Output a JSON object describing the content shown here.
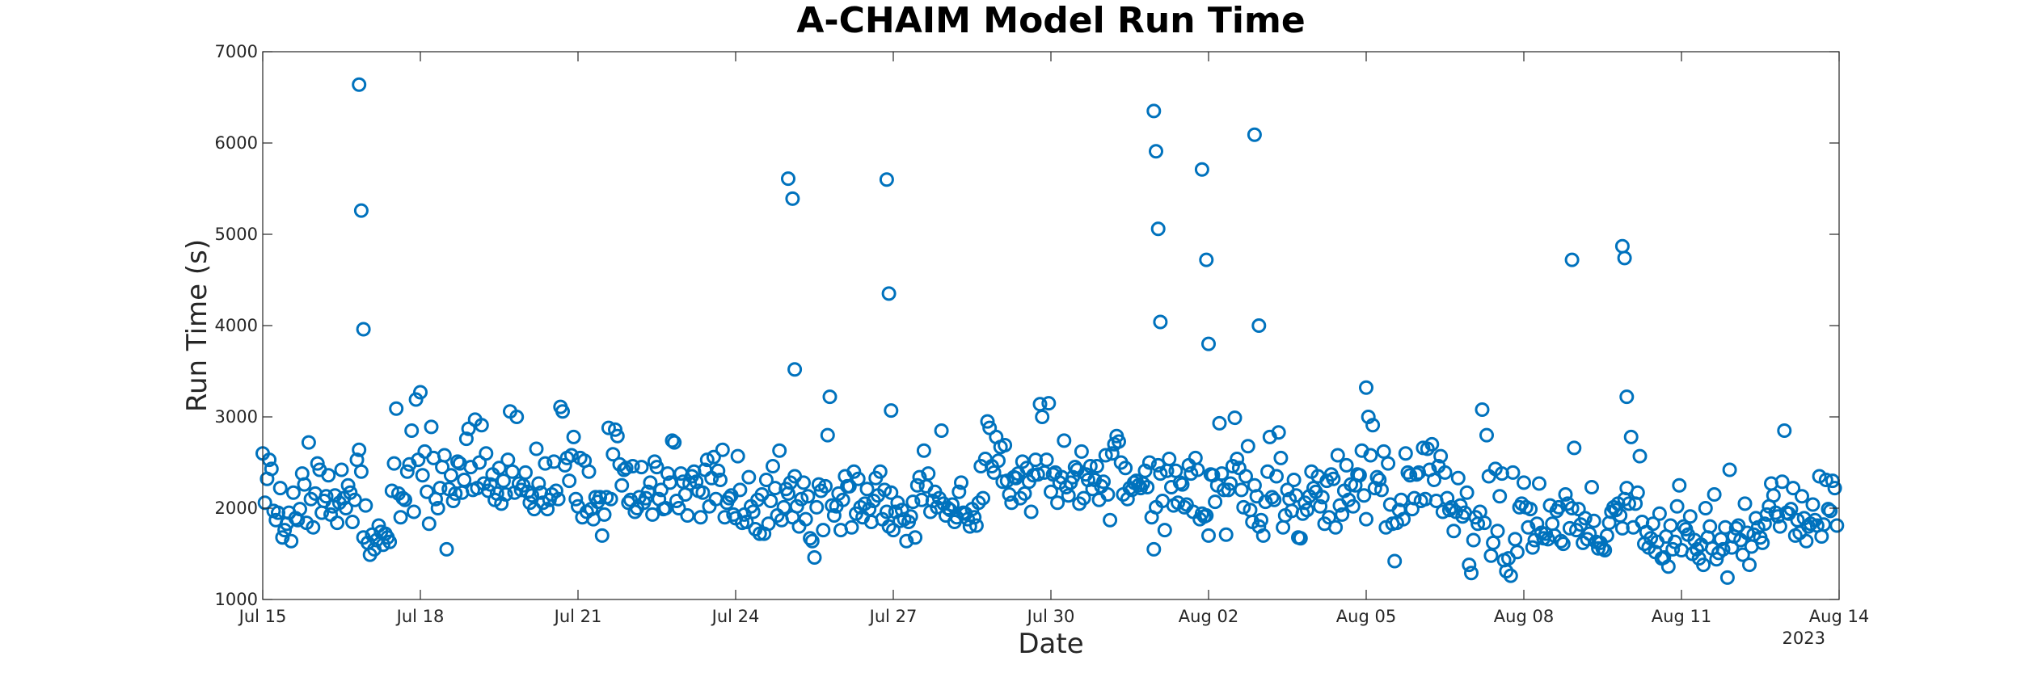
{
  "chart_data": {
    "type": "scatter",
    "title": "A-CHAIM Model Run Time",
    "xlabel": "Date",
    "ylabel": "Run Time (s)",
    "year_label": "2023",
    "marker_color": "#0072BD",
    "grid": false,
    "xlim": [
      "2023-07-15",
      "2023-08-14"
    ],
    "ylim": [
      1000,
      7000
    ],
    "x_ticks": [
      {
        "date": "2023-07-15",
        "label": "Jul 15"
      },
      {
        "date": "2023-07-18",
        "label": "Jul 18"
      },
      {
        "date": "2023-07-21",
        "label": "Jul 21"
      },
      {
        "date": "2023-07-24",
        "label": "Jul 24"
      },
      {
        "date": "2023-07-27",
        "label": "Jul 27"
      },
      {
        "date": "2023-07-30",
        "label": "Jul 30"
      },
      {
        "date": "2023-08-02",
        "label": "Aug 02"
      },
      {
        "date": "2023-08-05",
        "label": "Aug 05"
      },
      {
        "date": "2023-08-08",
        "label": "Aug 08"
      },
      {
        "date": "2023-08-11",
        "label": "Aug 11"
      },
      {
        "date": "2023-08-14",
        "label": "Aug 14"
      }
    ],
    "y_ticks": [
      1000,
      2000,
      3000,
      4000,
      5000,
      6000,
      7000
    ],
    "outliers": [
      {
        "x": "2023-07-16 20:00",
        "y": 6640
      },
      {
        "x": "2023-07-16 21:00",
        "y": 5260
      },
      {
        "x": "2023-07-16 22:00",
        "y": 3960
      },
      {
        "x": "2023-07-25 00:00",
        "y": 5610
      },
      {
        "x": "2023-07-25 02:00",
        "y": 5390
      },
      {
        "x": "2023-07-25 03:00",
        "y": 3520
      },
      {
        "x": "2023-07-26 21:00",
        "y": 5600
      },
      {
        "x": "2023-07-26 22:00",
        "y": 4350
      },
      {
        "x": "2023-07-26 23:00",
        "y": 3070
      },
      {
        "x": "2023-07-31 23:00",
        "y": 6350
      },
      {
        "x": "2023-08-01 00:00",
        "y": 5910
      },
      {
        "x": "2023-08-01 01:00",
        "y": 5060
      },
      {
        "x": "2023-08-01 02:00",
        "y": 4040
      },
      {
        "x": "2023-08-01 21:00",
        "y": 5710
      },
      {
        "x": "2023-08-01 23:00",
        "y": 4720
      },
      {
        "x": "2023-08-02 00:00",
        "y": 3800
      },
      {
        "x": "2023-08-02 21:00",
        "y": 6090
      },
      {
        "x": "2023-08-02 23:00",
        "y": 4000
      },
      {
        "x": "2023-08-05 00:00",
        "y": 3320
      },
      {
        "x": "2023-08-08 22:00",
        "y": 4720
      },
      {
        "x": "2023-08-09 21:00",
        "y": 4870
      },
      {
        "x": "2023-08-09 22:00",
        "y": 4740
      },
      {
        "x": "2023-08-09 23:00",
        "y": 3220
      }
    ],
    "series": [
      {
        "x_start": "2023-07-15 00:00",
        "x_step_hours": 1,
        "y": [
          2600,
          2060,
          2320,
          2530,
          2430,
          1970,
          1870,
          1950,
          2220,
          1680,
          1760,
          1830,
          1950,
          1640,
          2170,
          1890,
          1870,
          1990,
          2380,
          2260,
          1840,
          2720,
          2100,
          1790,
          2160,
          2490,
          2420,
          1950,
          2080,
          2130,
          2360,
          1930,
          2020,
          2140,
          1840,
          2060,
          2420,
          2110,
          2000,
          2250,
          2170,
          1850,
          2090,
          2530,
          2640,
          2400,
          1680,
          2030,
          1620,
          1490,
          1710,
          1550,
          1650,
          1810,
          1740,
          1600,
          1720,
          1680,
          1630,
          2190,
          2490,
          3090,
          2160,
          1900,
          2110,
          2090,
          2400,
          2480,
          2850,
          1960,
          3190,
          2530,
          3270,
          2360,
          2620,
          2180,
          1830,
          2890,
          2550,
          2100,
          2000,
          2220,
          2450,
          2580,
          1550,
          2210,
          2360,
          2080,
          2160,
          2510,
          2490,
          2170,
          2310,
          2760,
          2870,
          2450,
          2200,
          2970,
          2220,
          2500,
          2910,
          2270,
          2600,
          2190,
          2260,
          2370,
          2090,
          2160,
          2440,
          2050,
          2300,
          2150,
          2530,
          3060,
          2400,
          2170,
          3000,
          2270,
          2200,
          2250,
          2390,
          2180,
          2060,
          2140,
          1990,
          2650,
          2270,
          2170,
          2060,
          2490,
          1990,
          2090,
          2150,
          2510,
          2190,
          2100,
          3110,
          3060,
          2470,
          2550,
          2300,
          2580,
          2780,
          2100,
          2020,
          2550,
          1900,
          2520,
          1960,
          2400,
          1990,
          1880,
          2120,
          2070,
          2120,
          1700,
          1930,
          2120,
          2880,
          2100,
          2590,
          2860,
          2790,
          2480,
          2250,
          2420,
          2440,
          2060,
          2090,
          2460,
          1960,
          2000,
          2120,
          2450,
          2060,
          2110,
          2180,
          2280,
          1930,
          2510,
          2450,
          2100,
          2200,
          1990,
          2000,
          2380,
          2280,
          2740,
          2720,
          2080,
          2000,
          2380,
          2290,
          2150,
          1920,
          2270,
          2350,
          2400,
          2290,
          2190,
          1900,
          2170,
          2420,
          2530,
          2020,
          2330,
          2560,
          2100,
          2410,
          2310,
          2640,
          1900,
          2060,
          2110,
          2140,
          1930,
          1890,
          2570,
          2200,
          1840,
          1930,
          1850,
          2340,
          2020,
          1960,
          1770,
          2090,
          1720,
          2150,
          1720,
          2310,
          1830,
          2080,
          2460,
          2220,
          1920,
          2630,
          1870,
          2010,
          2210,
          2160,
          2280,
          1900,
          2350,
          2020,
          1800,
          2100,
          2280,
          1880,
          2130,
          1670,
          1640,
          1460,
          2010,
          2260,
          2190,
          1760,
          2240,
          2800,
          3220,
          2030,
          1920,
          2020,
          2160,
          1760,
          2090,
          2350,
          2240,
          2240,
          1790,
          2400,
          1940,
          2320,
          2010,
          1900,
          2050,
          2210,
          1990,
          1850,
          2080,
          2330,
          2140,
          2400,
          1880,
          2200,
          1960,
          1800,
          2170,
          1760,
          1960,
          2060,
          1860,
          1980,
          1880,
          1640,
          1850,
          1910,
          2070,
          1680,
          2250,
          2340,
          2090,
          2630,
          2240,
          2380,
          1960,
          2080,
          2180,
          2010,
          2110,
          2850,
          2050,
          1920,
          2000,
          1980,
          2040,
          1850,
          1900,
          2180,
          2280,
          1950,
          1940,
          1880,
          1800,
          1990,
          1900,
          1810,
          2060,
          2460,
          2110,
          2540,
          2950,
          2880,
          2460,
          2390,
          2780,
          2520,
          2670,
          2290,
          2690,
          2300,
          2150,
          2060,
          2340,
          2330,
          2380,
          2110,
          2510,
          2160,
          2440,
          2290,
          1960,
          2360,
          2530,
          2370,
          3140,
          3000,
          2390,
          2530,
          3150,
          2180,
          2370,
          2390,
          2060,
          2280,
          2340,
          2740,
          2230,
          2140,
          2280,
          2340,
          2450,
          2420,
          2050,
          2620,
          2110,
          2370,
          2310,
          2460,
          2210,
          2310,
          2460,
          2090,
          2240,
          2290,
          2580,
          2150,
          1870,
          2600,
          2700,
          2790,
          2730,
          2500,
          2150,
          2440,
          2100,
          2220,
          2200,
          2280,
          2300,
          2250,
          2220,
          2270,
          2410,
          2230,
          2500,
          1900,
          1550,
          2010,
          2470,
          2380,
          2080,
          1760,
          2410,
          2540,
          2230,
          2030,
          2410,
          2060,
          2280,
          2260,
          2010,
          2040,
          2470,
          2380,
          1960,
          2550,
          2420,
          1880,
          1940,
          1910,
          1920,
          1700,
          2370,
          2360,
          2070,
          2250,
          2930,
          2380,
          2200,
          1710,
          2200,
          2270,
          2460,
          2990,
          2540,
          2440,
          2200,
          2010,
          2350,
          2680,
          1980,
          1850,
          2250,
          2130,
          1800,
          1870,
          1700,
          2070,
          2400,
          2780,
          2120,
          2090,
          2350,
          2830,
          2550,
          1790,
          1920,
          2200,
          2100,
          1970,
          2310,
          2140,
          1680,
          1670,
          1940,
          2060,
          1980,
          2130,
          2400,
          2220,
          2180,
          2350,
          2020,
          2120,
          1830,
          2300,
          1900,
          2370,
          2320,
          1790,
          2580,
          2030,
          1930,
          2190,
          2470,
          2090,
          2260,
          2020,
          2250,
          2370,
          2360,
          2630,
          2140,
          1880,
          3000,
          2580,
          2910,
          2220,
          2340,
          2310,
          2200,
          2620,
          1790,
          2490,
          2040,
          1830,
          1420,
          1840,
          1980,
          2090,
          1880,
          2600,
          2390,
          2360,
          1990,
          2110,
          2370,
          2390,
          2080,
          2660,
          2100,
          2650,
          2420,
          2700,
          2310,
          2080,
          2460,
          2570,
          1960,
          2390,
          2110,
          1980,
          2010,
          1750,
          1960,
          2330,
          2030,
          1910,
          1950,
          2170,
          1380,
          1290,
          1650,
          1900,
          1830,
          1960,
          3080,
          1840,
          2800,
          2350,
          1480,
          1620,
          2430,
          1750,
          2130,
          2380,
          1430,
          1310,
          1450,
          1260,
          2390,
          1660,
          1520,
          2010,
          2050,
          2280,
          2010,
          1790,
          1990,
          1570,
          1650,
          1830,
          2270,
          1730,
          1670,
          1720,
          1660,
          2030,
          1830,
          1700,
          1970,
          2010,
          1640,
          1610,
          2150,
          2050,
          1780,
          2000,
          2660,
          1760,
          1990,
          1820,
          1620,
          1890,
          1660,
          1720,
          2230,
          1860,
          1630,
          1560,
          1620,
          1560,
          1540,
          1700,
          1840,
          1960,
          2010,
          1980,
          2050,
          1920,
          1780,
          2100,
          2220,
          2050,
          2780,
          1790,
          2050,
          2170,
          2570,
          1850,
          1610,
          1740,
          1570,
          1670,
          1830,
          1520,
          1630,
          1940,
          1450,
          1460,
          1690,
          1360,
          1810,
          1550,
          1630,
          2020,
          2250,
          1540,
          1800,
          1770,
          1710,
          1910,
          1500,
          1650,
          1550,
          1450,
          1600,
          1380,
          2000,
          1680,
          1800,
          1560,
          2150,
          1440,
          1510,
          1660,
          1550,
          1790,
          1240,
          2420,
          1570,
          1690,
          1780,
          1810,
          1650,
          1490,
          2050,
          1730,
          1380,
          1580,
          1710,
          1890,
          1790,
          1680,
          1620,
          1830,
          1930,
          2020,
          2270,
          2140,
          1950,
          1910,
          1800,
          2290,
          2850,
          1950,
          1940,
          1990,
          2220,
          1700,
          1870,
          1730,
          2130,
          1890,
          1640,
          1800,
          1830,
          2040,
          1870,
          1810,
          2350,
          1690,
          1820,
          2310,
          1990,
          1970,
          2300,
          2220,
          1810
        ]
      }
    ]
  }
}
